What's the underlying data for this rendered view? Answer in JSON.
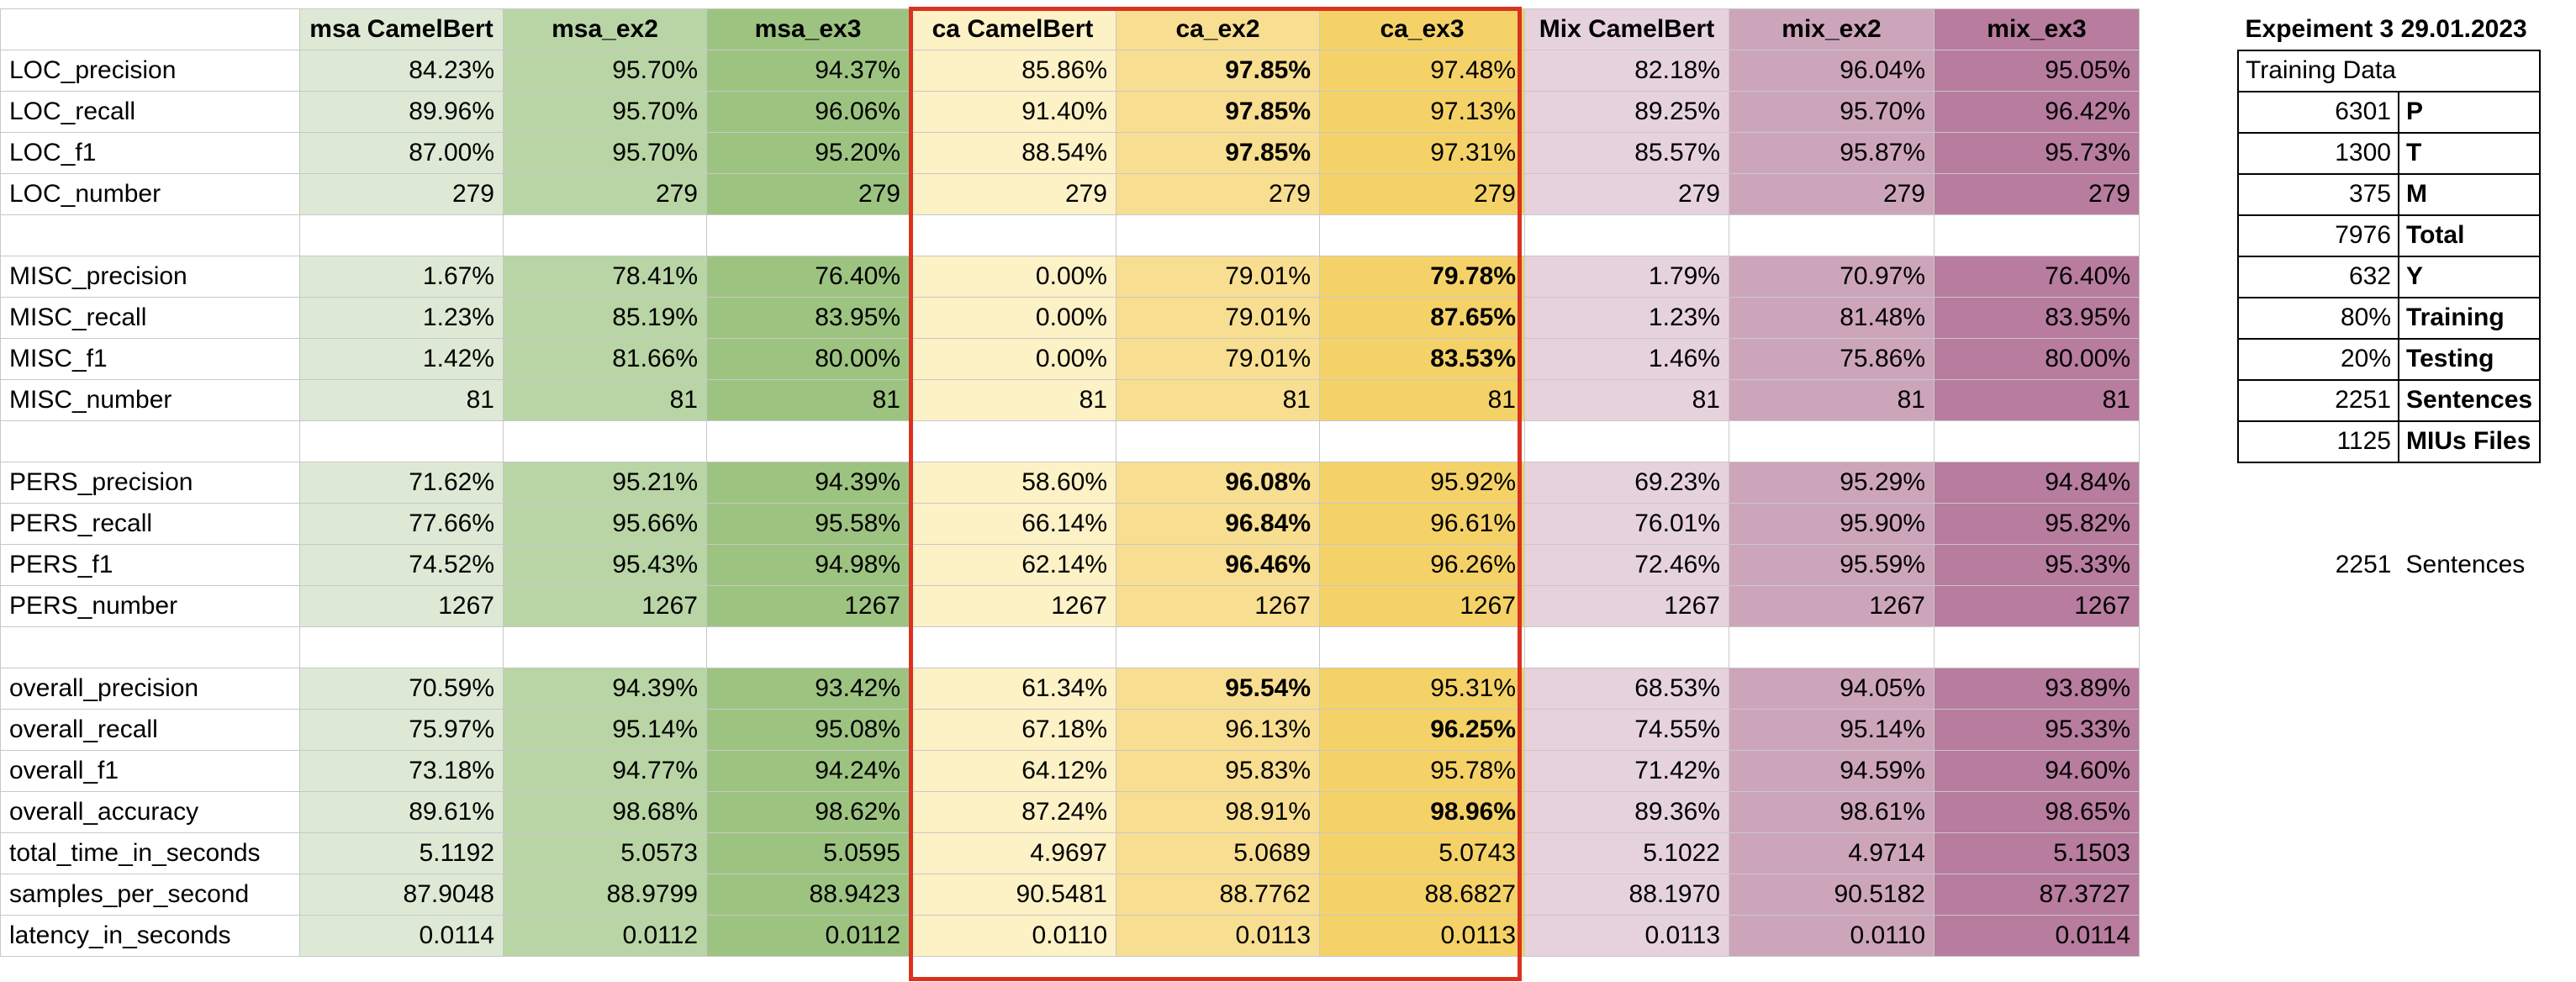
{
  "sheet": {
    "columns": [
      "",
      "msa CamelBert",
      "msa_ex2",
      "msa_ex3",
      "ca CamelBert",
      "ca_ex2",
      "ca_ex3",
      "Mix CamelBert",
      "mix_ex2",
      "mix_ex3"
    ],
    "rows": [
      {
        "label": "LOC_precision",
        "values": [
          "84.23%",
          "95.70%",
          "94.37%",
          "85.86%",
          "97.85%",
          "97.48%",
          "82.18%",
          "96.04%",
          "95.05%"
        ],
        "bold": [
          4
        ]
      },
      {
        "label": "LOC_recall",
        "values": [
          "89.96%",
          "95.70%",
          "96.06%",
          "91.40%",
          "97.85%",
          "97.13%",
          "89.25%",
          "95.70%",
          "96.42%"
        ],
        "bold": [
          4
        ]
      },
      {
        "label": "LOC_f1",
        "values": [
          "87.00%",
          "95.70%",
          "95.20%",
          "88.54%",
          "97.85%",
          "97.31%",
          "85.57%",
          "95.87%",
          "95.73%"
        ],
        "bold": [
          4
        ]
      },
      {
        "label": "LOC_number",
        "values": [
          "279",
          "279",
          "279",
          "279",
          "279",
          "279",
          "279",
          "279",
          "279"
        ],
        "bold": []
      },
      {
        "blank": true
      },
      {
        "label": "MISC_precision",
        "values": [
          "1.67%",
          "78.41%",
          "76.40%",
          "0.00%",
          "79.01%",
          "79.78%",
          "1.79%",
          "70.97%",
          "76.40%"
        ],
        "bold": [
          5
        ]
      },
      {
        "label": "MISC_recall",
        "values": [
          "1.23%",
          "85.19%",
          "83.95%",
          "0.00%",
          "79.01%",
          "87.65%",
          "1.23%",
          "81.48%",
          "83.95%"
        ],
        "bold": [
          5
        ]
      },
      {
        "label": "MISC_f1",
        "values": [
          "1.42%",
          "81.66%",
          "80.00%",
          "0.00%",
          "79.01%",
          "83.53%",
          "1.46%",
          "75.86%",
          "80.00%"
        ],
        "bold": [
          5
        ]
      },
      {
        "label": "MISC_number",
        "values": [
          "81",
          "81",
          "81",
          "81",
          "81",
          "81",
          "81",
          "81",
          "81"
        ],
        "bold": []
      },
      {
        "blank": true
      },
      {
        "label": "PERS_precision",
        "values": [
          "71.62%",
          "95.21%",
          "94.39%",
          "58.60%",
          "96.08%",
          "95.92%",
          "69.23%",
          "95.29%",
          "94.84%"
        ],
        "bold": [
          4
        ]
      },
      {
        "label": "PERS_recall",
        "values": [
          "77.66%",
          "95.66%",
          "95.58%",
          "66.14%",
          "96.84%",
          "96.61%",
          "76.01%",
          "95.90%",
          "95.82%"
        ],
        "bold": [
          4
        ]
      },
      {
        "label": "PERS_f1",
        "values": [
          "74.52%",
          "95.43%",
          "94.98%",
          "62.14%",
          "96.46%",
          "96.26%",
          "72.46%",
          "95.59%",
          "95.33%"
        ],
        "bold": [
          4
        ]
      },
      {
        "label": "PERS_number",
        "values": [
          "1267",
          "1267",
          "1267",
          "1267",
          "1267",
          "1267",
          "1267",
          "1267",
          "1267"
        ],
        "bold": []
      },
      {
        "blank": true
      },
      {
        "label": "overall_precision",
        "values": [
          "70.59%",
          "94.39%",
          "93.42%",
          "61.34%",
          "95.54%",
          "95.31%",
          "68.53%",
          "94.05%",
          "93.89%"
        ],
        "bold": [
          4
        ]
      },
      {
        "label": "overall_recall",
        "values": [
          "75.97%",
          "95.14%",
          "95.08%",
          "67.18%",
          "96.13%",
          "96.25%",
          "74.55%",
          "95.14%",
          "95.33%"
        ],
        "bold": [
          5
        ]
      },
      {
        "label": "overall_f1",
        "values": [
          "73.18%",
          "94.77%",
          "94.24%",
          "64.12%",
          "95.83%",
          "95.78%",
          "71.42%",
          "94.59%",
          "94.60%"
        ],
        "bold": []
      },
      {
        "label": "overall_accuracy",
        "values": [
          "89.61%",
          "98.68%",
          "98.62%",
          "87.24%",
          "98.91%",
          "98.96%",
          "89.36%",
          "98.61%",
          "98.65%"
        ],
        "bold": [
          5
        ]
      },
      {
        "label": "total_time_in_seconds",
        "values": [
          "5.1192",
          "5.0573",
          "5.0595",
          "4.9697",
          "5.0689",
          "5.0743",
          "5.1022",
          "4.9714",
          "5.1503"
        ],
        "bold": []
      },
      {
        "label": "samples_per_second",
        "values": [
          "87.9048",
          "88.9799",
          "88.9423",
          "90.5481",
          "88.7762",
          "88.6827",
          "88.1970",
          "90.5182",
          "87.3727"
        ],
        "bold": []
      },
      {
        "label": "latency_in_seconds",
        "values": [
          "0.0114",
          "0.0112",
          "0.0112",
          "0.0110",
          "0.0113",
          "0.0113",
          "0.0113",
          "0.0110",
          "0.0114"
        ],
        "bold": []
      }
    ]
  },
  "side_panel": {
    "title": "Expeiment 3 29.01.2023",
    "subtitle": "Training Data",
    "items": [
      {
        "value": "6301",
        "label": "P"
      },
      {
        "value": "1300",
        "label": "T"
      },
      {
        "value": "375",
        "label": "M"
      },
      {
        "value": "7976",
        "label": "Total"
      },
      {
        "value": "632",
        "label": "Y"
      },
      {
        "value": "80%",
        "label": "Training"
      },
      {
        "value": "20%",
        "label": "Testing"
      },
      {
        "value": "2251",
        "label": "Sentences"
      },
      {
        "value": "1125",
        "label": "MIUs Files"
      }
    ],
    "footer": {
      "value": "2251",
      "label": "Sentences"
    }
  },
  "colors": {
    "highlight_border": "#d93320",
    "msa": [
      "#dde9d5",
      "#b9d5a5",
      "#9dc381"
    ],
    "ca": [
      "#fdf1c6",
      "#f8de90",
      "#f5d268"
    ],
    "mix": [
      "#e6d2dd",
      "#cda5bb",
      "#b77c9e"
    ]
  }
}
